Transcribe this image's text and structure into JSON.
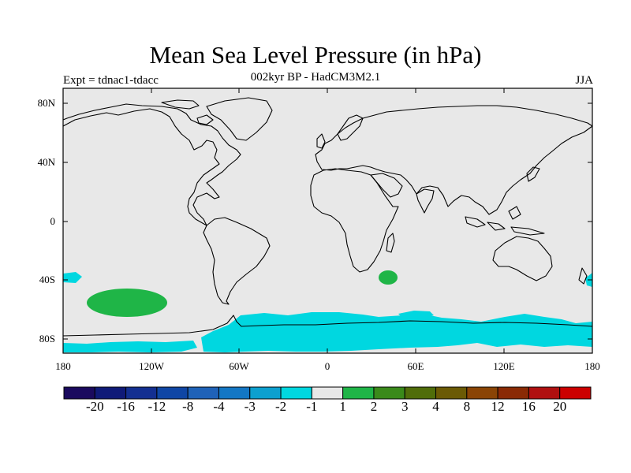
{
  "title": "Mean Sea Level Pressure (in hPa)",
  "subtitle": "002kyr BP - HadCM3M2.1",
  "left_label": "Expt = tdnac1-tdacc",
  "right_label": "JJA",
  "lat_labels": [
    "80N",
    "40N",
    "0",
    "40S",
    "80S"
  ],
  "lon_labels": [
    "180",
    "120W",
    "60W",
    "0",
    "60E",
    "120E",
    "180"
  ],
  "colorbar": {
    "colors": [
      "#1a0a5e",
      "#0f1a78",
      "#132f91",
      "#0f46a5",
      "#1f62b8",
      "#1377c4",
      "#0ca0cf",
      "#00d7e0",
      "#e8e8e8",
      "#1fb547",
      "#3a8a1a",
      "#506d0a",
      "#6b5a05",
      "#8a4405",
      "#8a2a05",
      "#b01010",
      "#cc0000"
    ],
    "labels": [
      "-20",
      "-16",
      "-12",
      "-8",
      "-4",
      "-3",
      "-2",
      "-1",
      "1",
      "2",
      "3",
      "4",
      "8",
      "12",
      "16",
      "20"
    ]
  },
  "palette": {
    "background": "#e8e8e8",
    "cyan": "#00d7e0",
    "green": "#1fb547"
  }
}
